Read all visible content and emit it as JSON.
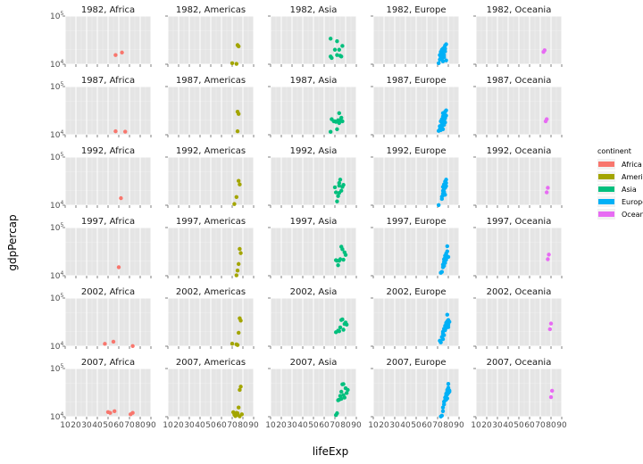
{
  "chart_data": {
    "type": "scatter",
    "xlabel": "lifeExp",
    "ylabel": "gdpPercap",
    "x_ticks": [
      "10",
      "20",
      "30",
      "40",
      "50",
      "60",
      "70",
      "80",
      "90"
    ],
    "xlim": [
      10,
      90
    ],
    "y_scale": "log",
    "y_ticks": [
      "10^4",
      "10^5"
    ],
    "y_tick_values": [
      10000,
      100000
    ],
    "ylim_log10": [
      4.0,
      5.0
    ],
    "grid": true,
    "legend_position": "right",
    "legend": {
      "title": "continent",
      "entries": [
        {
          "name": "Africa",
          "color": "#f8766d"
        },
        {
          "name": "Americas",
          "color": "#a3a500"
        },
        {
          "name": "Asia",
          "color": "#00bf7d"
        },
        {
          "name": "Europe",
          "color": "#00b0f6"
        },
        {
          "name": "Oceania",
          "color": "#e76bf3"
        }
      ]
    },
    "years": [
      "1982",
      "1987",
      "1992",
      "1997",
      "2002",
      "2007"
    ],
    "continents": [
      "Africa",
      "Americas",
      "Asia",
      "Europe",
      "Oceania"
    ],
    "panels": [
      {
        "label": "1982, Africa",
        "points": [
          [
            57,
            15500
          ],
          [
            63,
            17500
          ]
        ]
      },
      {
        "label": "1982, Americas",
        "points": [
          [
            70,
            10500
          ],
          [
            74,
            10200
          ],
          [
            75,
            25000
          ],
          [
            76,
            23500
          ]
        ]
      },
      {
        "label": "1982, Asia",
        "points": [
          [
            66,
            34000
          ],
          [
            66,
            14500
          ],
          [
            67,
            13500
          ],
          [
            70,
            20000
          ],
          [
            72,
            30000
          ],
          [
            72,
            15500
          ],
          [
            74,
            20000
          ],
          [
            75,
            15000
          ],
          [
            76,
            14500
          ],
          [
            77,
            24000
          ]
        ]
      },
      {
        "label": "1982, Europe",
        "points": [
          [
            71,
            10500
          ],
          [
            72,
            12500
          ],
          [
            72,
            15500
          ],
          [
            73,
            18000
          ],
          [
            73,
            14000
          ],
          [
            74,
            20000
          ],
          [
            74,
            13000
          ],
          [
            75,
            11500
          ],
          [
            75,
            17000
          ],
          [
            76,
            22000
          ],
          [
            76,
            15500
          ],
          [
            76,
            19500
          ],
          [
            77,
            24500
          ],
          [
            77,
            18500
          ],
          [
            77,
            21000
          ],
          [
            78,
            26000
          ],
          [
            78,
            12000
          ],
          [
            74,
            16000
          ],
          [
            75,
            21000
          ],
          [
            76,
            14000
          ]
        ]
      },
      {
        "label": "1982, Oceania",
        "points": [
          [
            73,
            18000
          ],
          [
            74,
            19500
          ]
        ]
      },
      {
        "label": "1987, Africa",
        "points": [
          [
            57,
            11800
          ],
          [
            66,
            11600
          ]
        ]
      },
      {
        "label": "1987, Americas",
        "points": [
          [
            75,
            11800
          ],
          [
            75,
            30000
          ],
          [
            76,
            27000
          ]
        ]
      },
      {
        "label": "1987, Asia",
        "points": [
          [
            66,
            11500
          ],
          [
            67,
            21000
          ],
          [
            69,
            19000
          ],
          [
            70,
            19000
          ],
          [
            71,
            18500
          ],
          [
            72,
            13000
          ],
          [
            73,
            20000
          ],
          [
            74,
            28000
          ],
          [
            74,
            17500
          ],
          [
            75,
            20000
          ],
          [
            76,
            22500
          ],
          [
            77,
            19000
          ]
        ]
      },
      {
        "label": "1987, Europe",
        "points": [
          [
            71,
            12000
          ],
          [
            72,
            13000
          ],
          [
            72,
            15000
          ],
          [
            73,
            19000
          ],
          [
            73,
            12500
          ],
          [
            74,
            21000
          ],
          [
            74,
            16500
          ],
          [
            75,
            24000
          ],
          [
            75,
            18000
          ],
          [
            76,
            27000
          ],
          [
            76,
            16000
          ],
          [
            77,
            30000
          ],
          [
            77,
            22000
          ],
          [
            78,
            32000
          ],
          [
            78,
            25000
          ],
          [
            74,
            14000
          ],
          [
            75,
            13000
          ],
          [
            76,
            20000
          ],
          [
            77,
            18000
          ],
          [
            75,
            28000
          ]
        ]
      },
      {
        "label": "1987, Oceania",
        "points": [
          [
            75,
            19000
          ],
          [
            76,
            21000
          ]
        ]
      },
      {
        "label": "1992, Africa",
        "points": [
          [
            62,
            14000
          ]
        ]
      },
      {
        "label": "1992, Americas",
        "points": [
          [
            72,
            10600
          ],
          [
            74,
            14800
          ],
          [
            76,
            32000
          ],
          [
            77,
            27000
          ]
        ]
      },
      {
        "label": "1992, Asia",
        "points": [
          [
            70,
            23500
          ],
          [
            71,
            18500
          ],
          [
            72,
            12000
          ],
          [
            73,
            15500
          ],
          [
            74,
            29000
          ],
          [
            74,
            25500
          ],
          [
            75,
            34000
          ],
          [
            76,
            20000
          ],
          [
            77,
            24000
          ],
          [
            78,
            26500
          ],
          [
            74,
            18000
          ]
        ]
      },
      {
        "label": "1992, Europe",
        "points": [
          [
            71,
            10100
          ],
          [
            74,
            15000
          ],
          [
            74,
            13500
          ],
          [
            75,
            17500
          ],
          [
            75,
            16000
          ],
          [
            75,
            20000
          ],
          [
            76,
            19000
          ],
          [
            76,
            22000
          ],
          [
            77,
            23000
          ],
          [
            77,
            26500
          ],
          [
            78,
            29000
          ],
          [
            78,
            25000
          ],
          [
            77,
            31000
          ],
          [
            78,
            34000
          ],
          [
            76,
            18000
          ],
          [
            75,
            24000
          ],
          [
            77,
            16500
          ],
          [
            76,
            27000
          ]
        ]
      },
      {
        "label": "1992, Oceania",
        "points": [
          [
            76,
            18500
          ],
          [
            77,
            23000
          ]
        ]
      },
      {
        "label": "1997, Africa",
        "points": [
          [
            60,
            15000
          ]
        ]
      },
      {
        "label": "1997, Americas",
        "points": [
          [
            74,
            10200
          ],
          [
            75,
            12800
          ],
          [
            76,
            17500
          ],
          [
            77,
            36000
          ],
          [
            78,
            29500
          ]
        ]
      },
      {
        "label": "1997, Asia",
        "points": [
          [
            71,
            21000
          ],
          [
            72,
            20500
          ],
          [
            73,
            16500
          ],
          [
            74,
            20500
          ],
          [
            75,
            22000
          ],
          [
            76,
            40000
          ],
          [
            77,
            35500
          ],
          [
            78,
            21500
          ],
          [
            79,
            30500
          ],
          [
            80,
            27000
          ]
        ]
      },
      {
        "label": "1997, Europe",
        "points": [
          [
            73,
            11500
          ],
          [
            74,
            12000
          ],
          [
            75,
            17000
          ],
          [
            75,
            15000
          ],
          [
            76,
            19500
          ],
          [
            76,
            22000
          ],
          [
            77,
            23500
          ],
          [
            77,
            26000
          ],
          [
            78,
            27500
          ],
          [
            78,
            29000
          ],
          [
            79,
            32000
          ],
          [
            79,
            41000
          ],
          [
            80,
            24500
          ],
          [
            77,
            18500
          ],
          [
            78,
            21500
          ],
          [
            76,
            16000
          ]
        ]
      },
      {
        "label": "1997, Oceania",
        "points": [
          [
            77,
            22000
          ],
          [
            78,
            27500
          ]
        ]
      },
      {
        "label": "2002, Africa",
        "points": [
          [
            47,
            11200
          ],
          [
            55,
            12400
          ],
          [
            73,
            10100
          ]
        ]
      },
      {
        "label": "2002, Americas",
        "points": [
          [
            70,
            11300
          ],
          [
            74,
            10900
          ],
          [
            75,
            10600
          ],
          [
            76,
            19000
          ],
          [
            77,
            38000
          ],
          [
            78,
            34000
          ]
        ]
      },
      {
        "label": "2002, Asia",
        "points": [
          [
            71,
            19500
          ],
          [
            73,
            21000
          ],
          [
            74,
            20500
          ],
          [
            75,
            24500
          ],
          [
            76,
            35000
          ],
          [
            77,
            36000
          ],
          [
            78,
            22000
          ],
          [
            79,
            29000
          ],
          [
            80,
            31000
          ],
          [
            81,
            28000
          ]
        ]
      },
      {
        "label": "2002, Europe",
        "points": [
          [
            72,
            13000
          ],
          [
            73,
            12000
          ],
          [
            74,
            15500
          ],
          [
            75,
            18000
          ],
          [
            75,
            20000
          ],
          [
            76,
            23000
          ],
          [
            77,
            26500
          ],
          [
            78,
            29000
          ],
          [
            78,
            30500
          ],
          [
            79,
            33000
          ],
          [
            79,
            45000
          ],
          [
            80,
            25000
          ],
          [
            80,
            28000
          ],
          [
            81,
            32000
          ],
          [
            77,
            21500
          ],
          [
            78,
            24000
          ],
          [
            79,
            27000
          ],
          [
            80,
            35000
          ],
          [
            75,
            14000
          ],
          [
            76,
            17000
          ]
        ]
      },
      {
        "label": "2002, Oceania",
        "points": [
          [
            79,
            22500
          ],
          [
            80,
            29500
          ]
        ]
      },
      {
        "label": "2007, Africa",
        "points": [
          [
            50,
            12500
          ],
          [
            52,
            12000
          ],
          [
            56,
            13000
          ],
          [
            71,
            11200
          ],
          [
            73,
            12000
          ]
        ]
      },
      {
        "label": "2007, Americas",
        "points": [
          [
            71,
            12400
          ],
          [
            72,
            11000
          ],
          [
            73,
            10300
          ],
          [
            74,
            12000
          ],
          [
            75,
            10900
          ],
          [
            75,
            11800
          ],
          [
            76,
            15500
          ],
          [
            77,
            36000
          ],
          [
            78,
            42000
          ],
          [
            79,
            11200
          ],
          [
            77,
            10200
          ]
        ]
      },
      {
        "label": "2007, Asia",
        "points": [
          [
            71,
            10800
          ],
          [
            72,
            11800
          ],
          [
            73,
            22000
          ],
          [
            74,
            22500
          ],
          [
            75,
            27000
          ],
          [
            76,
            33000
          ],
          [
            77,
            47000
          ],
          [
            78,
            47500
          ],
          [
            79,
            25000
          ],
          [
            80,
            39000
          ],
          [
            81,
            31000
          ],
          [
            82,
            36000
          ],
          [
            76,
            23500
          ],
          [
            78,
            28000
          ]
        ]
      },
      {
        "label": "2007, Europe",
        "points": [
          [
            73,
            10100
          ],
          [
            74,
            10500
          ],
          [
            75,
            15500
          ],
          [
            75,
            13000
          ],
          [
            76,
            18000
          ],
          [
            76,
            20500
          ],
          [
            77,
            22000
          ],
          [
            77,
            25000
          ],
          [
            78,
            27500
          ],
          [
            78,
            30000
          ],
          [
            79,
            33000
          ],
          [
            79,
            36000
          ],
          [
            80,
            38000
          ],
          [
            80,
            40000
          ],
          [
            80,
            48000
          ],
          [
            81,
            33000
          ],
          [
            81,
            35000
          ],
          [
            79,
            24000
          ],
          [
            78,
            22500
          ],
          [
            79,
            29000
          ],
          [
            80,
            31000
          ]
        ]
      },
      {
        "label": "2007, Oceania",
        "points": [
          [
            80,
            25500
          ],
          [
            81,
            34500
          ]
        ]
      }
    ]
  }
}
